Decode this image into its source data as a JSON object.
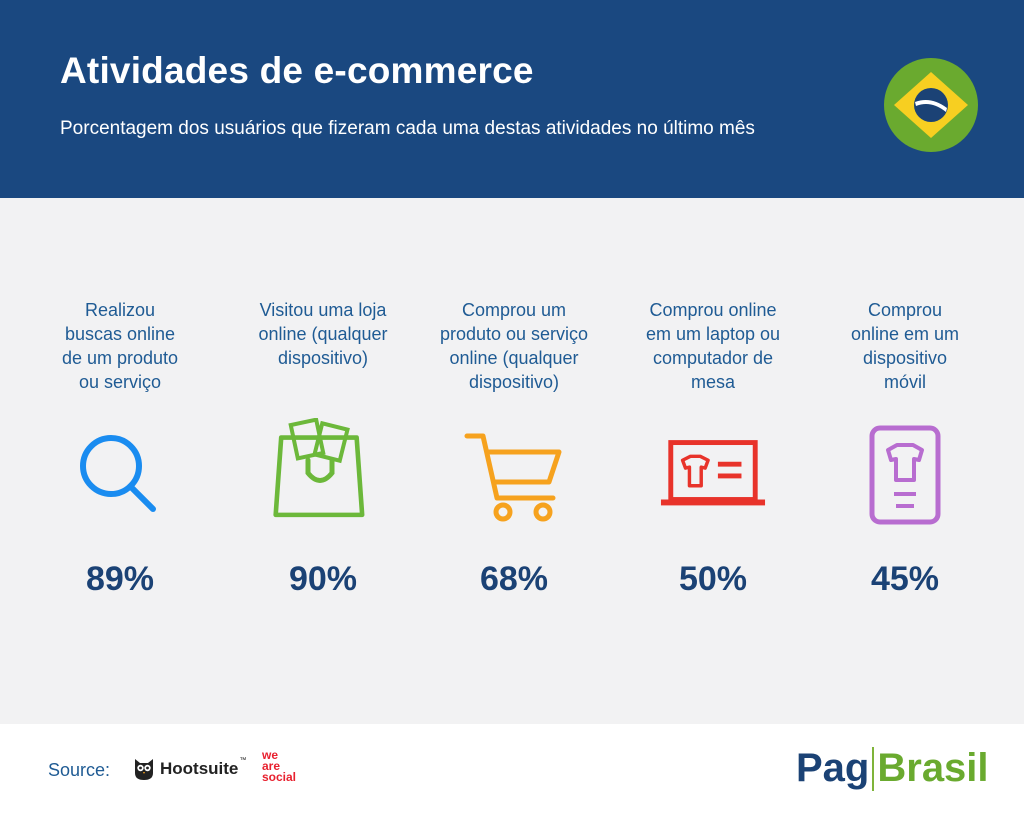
{
  "header": {
    "title": "Atividades de e-commerce",
    "subtitle": "Porcentagem dos usuários que fizeram cada uma destas atividades no último mês",
    "flag_icon": "brazil-flag-icon",
    "bg_color": "#1a4880"
  },
  "activities": [
    {
      "lines": [
        "Realizou",
        "buscas online",
        "de um produto",
        "ou serviço"
      ],
      "icon": "search-icon",
      "color": "#1a8cf0",
      "value": "89%"
    },
    {
      "lines": [
        "Visitou uma loja",
        "online (qualquer",
        "dispositivo)"
      ],
      "icon": "shopping-bag-icon",
      "color": "#6cb83a",
      "value": "90%"
    },
    {
      "lines": [
        "Comprou um",
        "produto ou serviço",
        "online (qualquer",
        "dispositivo)"
      ],
      "icon": "shopping-cart-icon",
      "color": "#f6a21e",
      "value": "68%"
    },
    {
      "lines": [
        "Comprou online",
        "em um laptop ou",
        "computador de",
        "mesa"
      ],
      "icon": "laptop-icon",
      "color": "#e8332a",
      "value": "50%"
    },
    {
      "lines": [
        "Comprou",
        "online em um",
        "dispositivo",
        "móvil"
      ],
      "icon": "mobile-phone-icon",
      "color": "#b86dd0",
      "value": "45%"
    }
  ],
  "footer": {
    "source_label": "Source:",
    "hootsuite": "Hootsuite",
    "trademark": "™",
    "wearesocial": [
      "we",
      "are",
      "social"
    ],
    "logo_left": "Pag",
    "logo_right": "Brasil"
  }
}
